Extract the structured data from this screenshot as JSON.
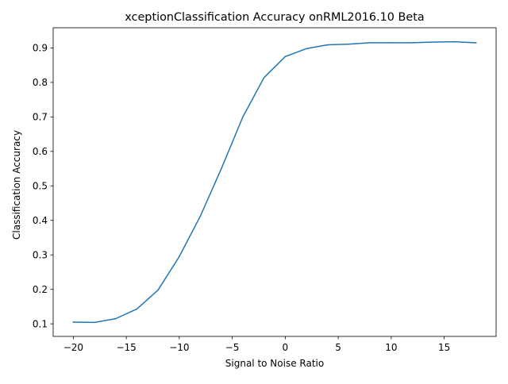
{
  "chart_data": {
    "type": "line",
    "title": "xceptionClassification Accuracy onRML2016.10 Beta",
    "xlabel": "Signal to Noise Ratio",
    "ylabel": "Classification Accuracy",
    "xlim": [
      -21.9,
      19.9
    ],
    "ylim": [
      0.0635,
      0.9585
    ],
    "xticks": [
      -20,
      -15,
      -10,
      -5,
      0,
      5,
      10,
      15
    ],
    "xtick_labels": [
      "−20",
      "−15",
      "−10",
      "−5",
      "0",
      "5",
      "10",
      "15"
    ],
    "yticks": [
      0.1,
      0.2,
      0.3,
      0.4,
      0.5,
      0.6,
      0.7,
      0.8,
      0.9
    ],
    "ytick_labels": [
      "0.1",
      "0.2",
      "0.3",
      "0.4",
      "0.5",
      "0.6",
      "0.7",
      "0.8",
      "0.9"
    ],
    "grid": false,
    "legend": "none",
    "series": [
      {
        "color": "#1f77b4",
        "x": [
          -20,
          -18,
          -16,
          -14,
          -12,
          -10,
          -8,
          -6,
          -4,
          -2,
          0,
          2,
          4,
          6,
          8,
          10,
          12,
          14,
          16,
          18
        ],
        "y": [
          0.105,
          0.104,
          0.115,
          0.143,
          0.198,
          0.295,
          0.413,
          0.552,
          0.7,
          0.814,
          0.875,
          0.898,
          0.909,
          0.911,
          0.915,
          0.915,
          0.915,
          0.917,
          0.918,
          0.915
        ]
      }
    ]
  }
}
